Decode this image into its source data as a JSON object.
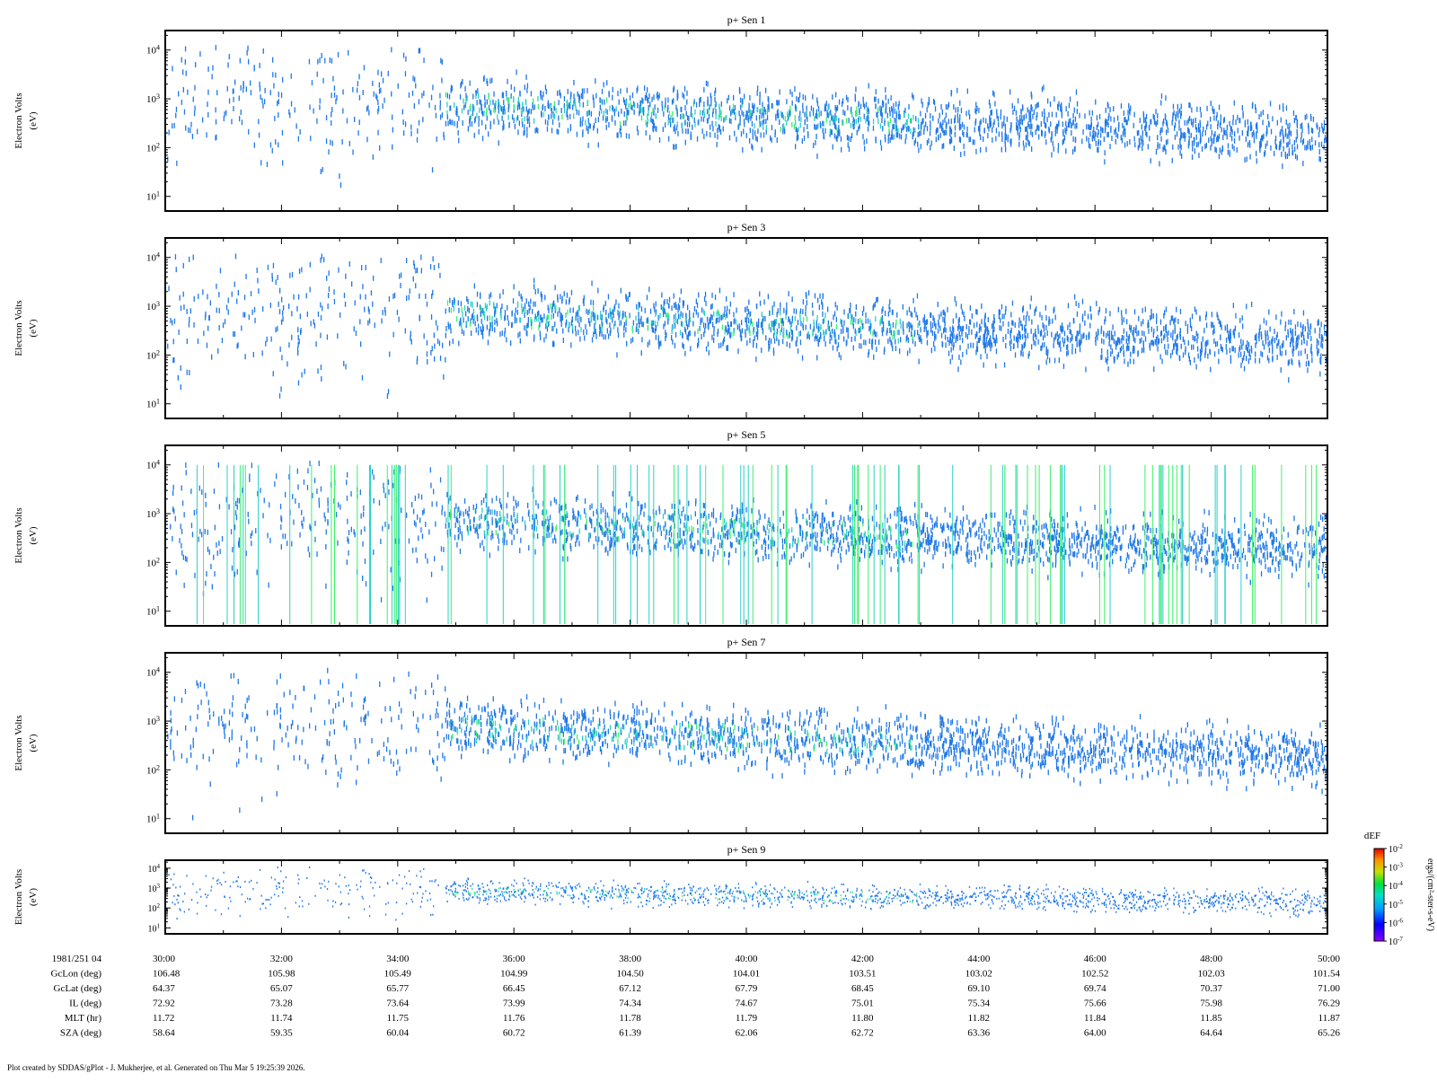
{
  "chart_data": {
    "type": "heatmap",
    "panels": [
      {
        "title": "p+ Sen 1",
        "ylabel": "Electron Volts",
        "yunits": "(eV)"
      },
      {
        "title": "p+ Sen 3",
        "ylabel": "Electron Volts",
        "yunits": "(eV)"
      },
      {
        "title": "p+ Sen 5",
        "ylabel": "Electron Volts",
        "yunits": "(eV)"
      },
      {
        "title": "p+ Sen 7",
        "ylabel": "Electron Volts",
        "yunits": "(eV)"
      },
      {
        "title": "p+ Sen 9",
        "ylabel": "Electron Volts",
        "yunits": "(eV)"
      }
    ],
    "y_scale": "log",
    "y_ticks": [
      "10^1",
      "10^2",
      "10^3",
      "10^4"
    ],
    "x_range": [
      "04:30:00",
      "04:50:00"
    ],
    "x_ticks": [
      "30:00",
      "32:00",
      "34:00",
      "36:00",
      "38:00",
      "40:00",
      "42:00",
      "44:00",
      "46:00",
      "48:00",
      "50:00"
    ],
    "ephemeris": [
      {
        "label": "1981/251 04",
        "values": [
          "30:00",
          "32:00",
          "34:00",
          "36:00",
          "38:00",
          "40:00",
          "42:00",
          "44:00",
          "46:00",
          "48:00",
          "50:00"
        ]
      },
      {
        "label": "GcLon (deg)",
        "values": [
          "106.48",
          "105.98",
          "105.49",
          "104.99",
          "104.50",
          "104.01",
          "103.51",
          "103.02",
          "102.52",
          "102.03",
          "101.54"
        ]
      },
      {
        "label": "GcLat (deg)",
        "values": [
          "64.37",
          "65.07",
          "65.77",
          "66.45",
          "67.12",
          "67.79",
          "68.45",
          "69.10",
          "69.74",
          "70.37",
          "71.00"
        ]
      },
      {
        "label": "IL (deg)",
        "values": [
          "72.92",
          "73.28",
          "73.64",
          "73.99",
          "74.34",
          "74.67",
          "75.01",
          "75.34",
          "75.66",
          "75.98",
          "76.29"
        ]
      },
      {
        "label": "MLT (hr)",
        "values": [
          "11.72",
          "11.74",
          "11.75",
          "11.76",
          "11.78",
          "11.79",
          "11.80",
          "11.82",
          "11.84",
          "11.85",
          "11.87"
        ]
      },
      {
        "label": "SZA (deg)",
        "values": [
          "58.64",
          "59.35",
          "60.04",
          "60.72",
          "61.39",
          "62.06",
          "62.72",
          "63.36",
          "64.00",
          "64.64",
          "65.26"
        ]
      }
    ],
    "colorbar": {
      "title": "dEF",
      "units": "ergs/(cm²-ster-s-eV)",
      "ticks": [
        "10^-2",
        "10^-3",
        "10^-4",
        "10^-5",
        "10^-6",
        "10^-7"
      ],
      "scale": "log"
    },
    "colors": {
      "low": "#1f78e8",
      "mid": "#2ad0c8",
      "high": "#3ef06a"
    }
  },
  "footer": "Plot created by SDDAS/gPlot - J. Mukherjee, et al.  Generated on Thu Mar 5 19:25:39 2026."
}
